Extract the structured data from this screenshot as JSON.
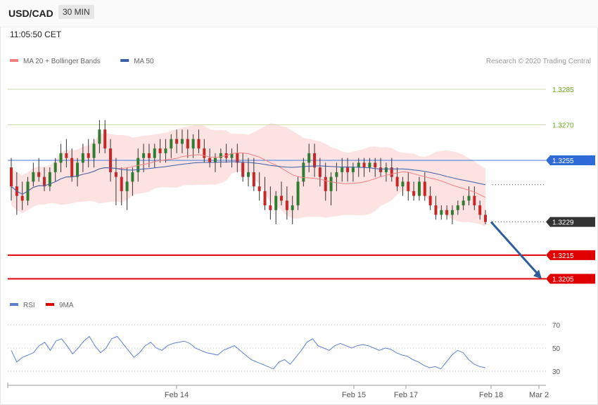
{
  "header": {
    "symbol": "USD/CAD",
    "timeframe": "30 MIN",
    "time": "11:05:50 CET"
  },
  "chart_data": [
    {
      "type": "candlestick",
      "legend": [
        {
          "name": "MA 20 + Bollinger Bands",
          "color": "#f08080"
        },
        {
          "name": "MA 50",
          "color": "#3a5ea8"
        }
      ],
      "credit": "Research © 2020 Trading Central",
      "x_ticks": [
        "Feb 14",
        "Feb 15",
        "Feb 17",
        "Feb 18",
        "Mar 2"
      ],
      "ylim": [
        1.3201,
        1.3293
      ],
      "levels": [
        {
          "value": 1.3285,
          "label": "1.3285",
          "style": "resistance",
          "color": "#7cb518"
        },
        {
          "value": 1.327,
          "label": "1.3270",
          "style": "resistance",
          "color": "#7cb518"
        },
        {
          "value": 1.3255,
          "label": "1.3255",
          "style": "pivot",
          "color": "#2f6bd8"
        },
        {
          "value": 1.3229,
          "label": "1.3229",
          "style": "last",
          "color": "#333333"
        },
        {
          "value": 1.3215,
          "label": "1.3215",
          "style": "support",
          "color": "#e00000"
        },
        {
          "value": 1.3205,
          "label": "1.3205",
          "style": "support",
          "color": "#e00000"
        }
      ],
      "forecast_arrow": {
        "from": 1.3229,
        "to": 1.3205,
        "color": "#2e5d9b"
      },
      "candles": [
        [
          1.3252,
          1.3256,
          1.3238,
          1.3244
        ],
        [
          1.3244,
          1.325,
          1.3232,
          1.324
        ],
        [
          1.324,
          1.3246,
          1.3234,
          1.3238
        ],
        [
          1.3238,
          1.3248,
          1.3236,
          1.3246
        ],
        [
          1.3246,
          1.3254,
          1.3244,
          1.325
        ],
        [
          1.325,
          1.3256,
          1.3246,
          1.3248
        ],
        [
          1.3248,
          1.3252,
          1.3242,
          1.3244
        ],
        [
          1.3244,
          1.3252,
          1.3242,
          1.325
        ],
        [
          1.325,
          1.3256,
          1.3246,
          1.3254
        ],
        [
          1.3254,
          1.3262,
          1.325,
          1.3258
        ],
        [
          1.3258,
          1.3264,
          1.3252,
          1.3256
        ],
        [
          1.3256,
          1.326,
          1.3246,
          1.3248
        ],
        [
          1.3248,
          1.3256,
          1.3244,
          1.3254
        ],
        [
          1.3254,
          1.3262,
          1.325,
          1.3258
        ],
        [
          1.3258,
          1.3264,
          1.3252,
          1.3256
        ],
        [
          1.3256,
          1.3264,
          1.3252,
          1.3262
        ],
        [
          1.3262,
          1.3272,
          1.3258,
          1.3268
        ],
        [
          1.3268,
          1.3272,
          1.3258,
          1.326
        ],
        [
          1.326,
          1.3264,
          1.3246,
          1.325
        ],
        [
          1.325,
          1.3256,
          1.3236,
          1.3248
        ],
        [
          1.3248,
          1.3252,
          1.3236,
          1.3242
        ],
        [
          1.3242,
          1.3252,
          1.3234,
          1.3246
        ],
        [
          1.3246,
          1.3252,
          1.324,
          1.325
        ],
        [
          1.325,
          1.326,
          1.3246,
          1.3256
        ],
        [
          1.3256,
          1.3262,
          1.325,
          1.3258
        ],
        [
          1.3258,
          1.3262,
          1.3252,
          1.3256
        ],
        [
          1.3256,
          1.3262,
          1.3252,
          1.326
        ],
        [
          1.326,
          1.3264,
          1.3254,
          1.3258
        ],
        [
          1.3258,
          1.3264,
          1.3254,
          1.326
        ],
        [
          1.326,
          1.3266,
          1.3256,
          1.3264
        ],
        [
          1.3264,
          1.3268,
          1.3258,
          1.3262
        ],
        [
          1.3262,
          1.3268,
          1.3258,
          1.3264
        ],
        [
          1.3264,
          1.3268,
          1.3256,
          1.326
        ],
        [
          1.326,
          1.3266,
          1.3256,
          1.3264
        ],
        [
          1.3264,
          1.3268,
          1.3258,
          1.326
        ],
        [
          1.326,
          1.3264,
          1.3254,
          1.3256
        ],
        [
          1.3256,
          1.326,
          1.3252,
          1.3254
        ],
        [
          1.3254,
          1.3258,
          1.325,
          1.3256
        ],
        [
          1.3256,
          1.326,
          1.3252,
          1.3258
        ],
        [
          1.3258,
          1.3262,
          1.3254,
          1.3256
        ],
        [
          1.3256,
          1.326,
          1.3252,
          1.3258
        ],
        [
          1.3258,
          1.3262,
          1.325,
          1.3254
        ],
        [
          1.3254,
          1.3258,
          1.3246,
          1.3248
        ],
        [
          1.3248,
          1.3256,
          1.3244,
          1.325
        ],
        [
          1.325,
          1.3256,
          1.3242,
          1.3244
        ],
        [
          1.3244,
          1.325,
          1.3238,
          1.3242
        ],
        [
          1.3242,
          1.3248,
          1.3234,
          1.3236
        ],
        [
          1.3236,
          1.3244,
          1.323,
          1.3234
        ],
        [
          1.3234,
          1.3242,
          1.3228,
          1.324
        ],
        [
          1.324,
          1.3246,
          1.3236,
          1.3238
        ],
        [
          1.3238,
          1.3244,
          1.323,
          1.3234
        ],
        [
          1.3234,
          1.324,
          1.3228,
          1.3236
        ],
        [
          1.3236,
          1.3248,
          1.3234,
          1.3246
        ],
        [
          1.3246,
          1.3256,
          1.3244,
          1.3254
        ],
        [
          1.3254,
          1.3262,
          1.325,
          1.3258
        ],
        [
          1.3258,
          1.3262,
          1.3248,
          1.3252
        ],
        [
          1.3252,
          1.3256,
          1.3244,
          1.3248
        ],
        [
          1.3248,
          1.3254,
          1.3238,
          1.3242
        ],
        [
          1.3242,
          1.325,
          1.3236,
          1.3248
        ],
        [
          1.3248,
          1.3254,
          1.3242,
          1.325
        ],
        [
          1.325,
          1.3256,
          1.3246,
          1.3252
        ],
        [
          1.3252,
          1.3256,
          1.3246,
          1.325
        ],
        [
          1.325,
          1.3254,
          1.3246,
          1.3252
        ],
        [
          1.3252,
          1.3256,
          1.3248,
          1.3254
        ],
        [
          1.3254,
          1.3256,
          1.3248,
          1.3252
        ],
        [
          1.3252,
          1.3256,
          1.325,
          1.3254
        ],
        [
          1.3254,
          1.3256,
          1.3248,
          1.3252
        ],
        [
          1.3252,
          1.3256,
          1.3248,
          1.325
        ],
        [
          1.325,
          1.3254,
          1.3246,
          1.3252
        ],
        [
          1.3252,
          1.3256,
          1.3246,
          1.3248
        ],
        [
          1.3248,
          1.3252,
          1.3242,
          1.3244
        ],
        [
          1.3244,
          1.3248,
          1.324,
          1.3246
        ],
        [
          1.3246,
          1.325,
          1.3238,
          1.3242
        ],
        [
          1.3242,
          1.3246,
          1.3238,
          1.324
        ],
        [
          1.324,
          1.3248,
          1.3238,
          1.3246
        ],
        [
          1.3246,
          1.325,
          1.3238,
          1.324
        ],
        [
          1.324,
          1.3244,
          1.3234,
          1.3236
        ],
        [
          1.3236,
          1.324,
          1.323,
          1.3232
        ],
        [
          1.3232,
          1.3236,
          1.323,
          1.3234
        ],
        [
          1.3234,
          1.3236,
          1.323,
          1.3232
        ],
        [
          1.3232,
          1.3236,
          1.3228,
          1.3234
        ],
        [
          1.3234,
          1.3238,
          1.3232,
          1.3236
        ],
        [
          1.3236,
          1.324,
          1.3234,
          1.3238
        ],
        [
          1.3238,
          1.3244,
          1.3236,
          1.324
        ],
        [
          1.324,
          1.3244,
          1.3234,
          1.3236
        ],
        [
          1.3236,
          1.3238,
          1.323,
          1.3232
        ],
        [
          1.3232,
          1.3234,
          1.3228,
          1.3229
        ]
      ]
    },
    {
      "type": "line",
      "legend": [
        {
          "name": "RSI",
          "color": "#5b7fd4"
        },
        {
          "name": "9MA",
          "color": "#e00000"
        }
      ],
      "y_ticks": [
        "70",
        "50",
        "30"
      ],
      "ylim": [
        25,
        75
      ],
      "series": [
        {
          "name": "RSI",
          "values": [
            48,
            38,
            42,
            44,
            46,
            52,
            55,
            48,
            56,
            58,
            52,
            45,
            50,
            56,
            60,
            52,
            46,
            50,
            58,
            60,
            54,
            48,
            42,
            46,
            52,
            55,
            50,
            48,
            52,
            54,
            55,
            56,
            54,
            50,
            48,
            46,
            45,
            44,
            48,
            50,
            52,
            48,
            44,
            40,
            38,
            36,
            34,
            32,
            38,
            40,
            36,
            42,
            48,
            55,
            58,
            52,
            50,
            48,
            52,
            54,
            52,
            50,
            52,
            53,
            52,
            50,
            48,
            50,
            49,
            46,
            44,
            43,
            40,
            38,
            35,
            33,
            34,
            32,
            38,
            44,
            48,
            46,
            40,
            36,
            34,
            33
          ]
        }
      ]
    }
  ]
}
